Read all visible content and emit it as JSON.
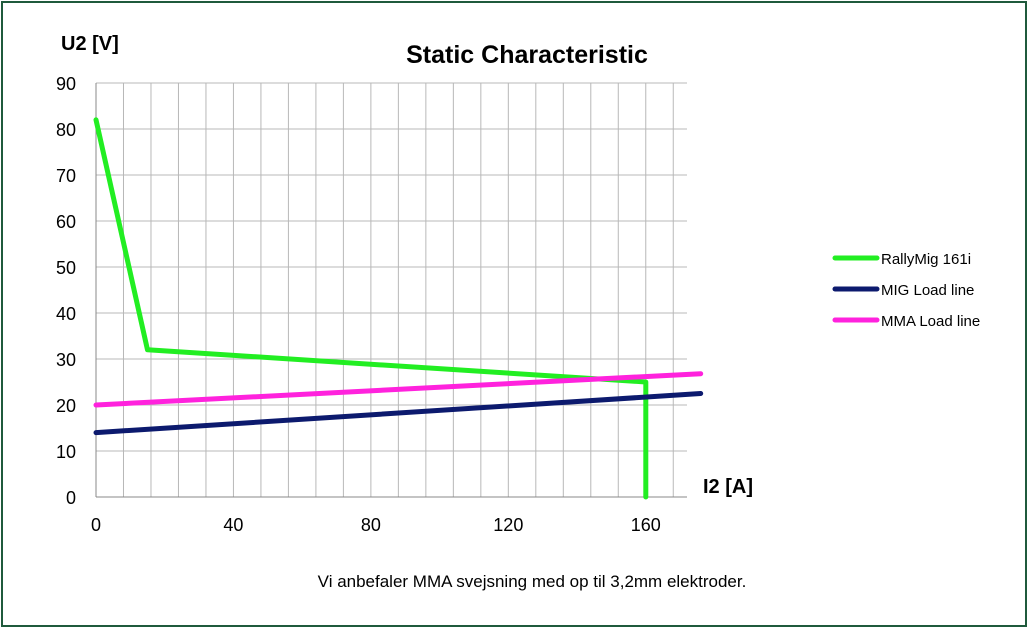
{
  "chart_data": {
    "type": "line",
    "title": "Static Characteristic",
    "xlabel": "I2 [A]",
    "ylabel": "U2 [V]",
    "xlim": [
      0,
      172
    ],
    "ylim": [
      0,
      90
    ],
    "x_ticks": [
      0,
      40,
      80,
      120,
      160
    ],
    "x_tick_labels": [
      "0",
      "40",
      "80",
      "120",
      "160"
    ],
    "x_minor_step": 8,
    "y_ticks": [
      0,
      10,
      20,
      30,
      40,
      50,
      60,
      70,
      80,
      90
    ],
    "y_tick_labels": [
      "0",
      "10",
      "20",
      "30",
      "40",
      "50",
      "60",
      "70",
      "80",
      "90"
    ],
    "grid": true,
    "legend_position": "right",
    "series": [
      {
        "name": "RallyMig 161i",
        "color": "#22ee22",
        "x": [
          0,
          15,
          160,
          160
        ],
        "y": [
          82,
          32,
          25,
          0
        ]
      },
      {
        "name": "MIG Load line",
        "color": "#0c1a6e",
        "x": [
          0,
          176
        ],
        "y": [
          14,
          22.5
        ]
      },
      {
        "name": "MMA Load line",
        "color": "#ff22dd",
        "x": [
          0,
          176
        ],
        "y": [
          20,
          26.8
        ]
      }
    ]
  },
  "footnote": "Vi anbefaler MMA svejsning med op til 3,2mm elektroder."
}
